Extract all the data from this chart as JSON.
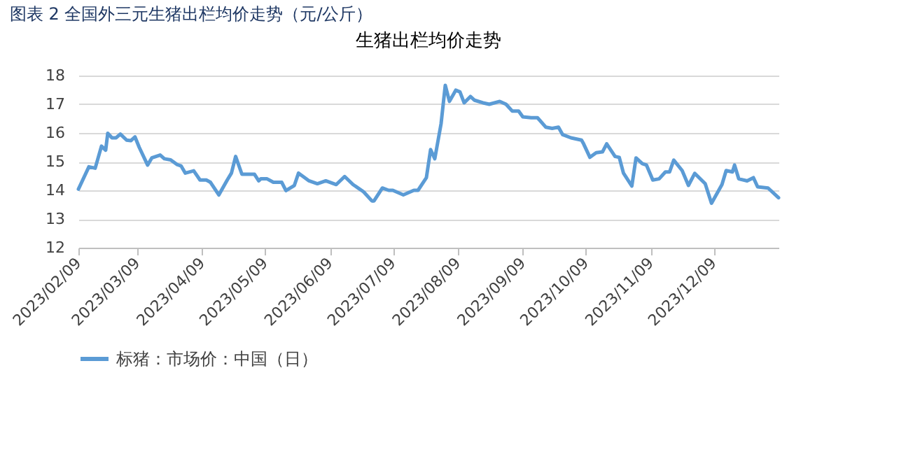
{
  "chart_data": {
    "type": "line",
    "title": "图表 2 全国外三元生猪出栏均价走势（元/公斤）",
    "subtitle": "生猪出栏均价走势",
    "x": [
      "2023-02-09",
      "2023-02-14",
      "2023-02-17",
      "2023-02-20",
      "2023-02-22",
      "2023-02-23",
      "2023-02-25",
      "2023-02-27",
      "2023-03-01",
      "2023-03-04",
      "2023-03-06",
      "2023-03-08",
      "2023-03-10",
      "2023-03-14",
      "2023-03-16",
      "2023-03-20",
      "2023-03-22",
      "2023-03-25",
      "2023-03-28",
      "2023-03-30",
      "2023-04-01",
      "2023-04-05",
      "2023-04-08",
      "2023-04-11",
      "2023-04-13",
      "2023-04-17",
      "2023-04-21",
      "2023-04-23",
      "2023-04-25",
      "2023-04-28",
      "2023-05-04",
      "2023-05-06",
      "2023-05-07",
      "2023-05-10",
      "2023-05-13",
      "2023-05-17",
      "2023-05-19",
      "2023-05-23",
      "2023-05-25",
      "2023-05-30",
      "2023-06-03",
      "2023-06-07",
      "2023-06-12",
      "2023-06-16",
      "2023-06-20",
      "2023-06-25",
      "2023-06-29",
      "2023-06-30",
      "2023-07-04",
      "2023-07-07",
      "2023-07-09",
      "2023-07-14",
      "2023-07-19",
      "2023-07-21",
      "2023-07-25",
      "2023-07-27",
      "2023-07-29",
      "2023-08-01",
      "2023-08-03",
      "2023-08-05",
      "2023-08-08",
      "2023-08-10",
      "2023-08-12",
      "2023-08-15",
      "2023-08-17",
      "2023-08-21",
      "2023-08-24",
      "2023-08-29",
      "2023-09-01",
      "2023-09-04",
      "2023-09-07",
      "2023-09-09",
      "2023-09-13",
      "2023-09-16",
      "2023-09-20",
      "2023-09-23",
      "2023-09-26",
      "2023-09-28",
      "2023-10-02",
      "2023-10-07",
      "2023-10-08",
      "2023-10-11",
      "2023-10-14",
      "2023-10-17",
      "2023-10-19",
      "2023-10-23",
      "2023-10-25",
      "2023-10-27",
      "2023-10-31",
      "2023-11-02",
      "2023-11-05",
      "2023-11-07",
      "2023-11-10",
      "2023-11-13",
      "2023-11-16",
      "2023-11-18",
      "2023-11-20",
      "2023-11-24",
      "2023-11-27",
      "2023-11-30",
      "2023-12-05",
      "2023-12-08",
      "2023-12-13",
      "2023-12-15",
      "2023-12-18",
      "2023-12-19",
      "2023-12-21",
      "2023-12-25",
      "2023-12-28",
      "2023-12-30",
      "2024-01-04",
      "2024-01-09"
    ],
    "series": [
      {
        "name": "标猪：市场价：中国（日）",
        "color": "#5b9bd5",
        "values": [
          14.04,
          14.82,
          14.77,
          15.54,
          15.4,
          15.99,
          15.83,
          15.83,
          15.96,
          15.75,
          15.73,
          15.86,
          15.5,
          14.88,
          15.13,
          15.23,
          15.1,
          15.06,
          14.9,
          14.85,
          14.6,
          14.68,
          14.36,
          14.36,
          14.28,
          13.84,
          14.36,
          14.6,
          15.18,
          14.56,
          14.56,
          14.33,
          14.4,
          14.4,
          14.28,
          14.28,
          13.99,
          14.17,
          14.6,
          14.33,
          14.23,
          14.33,
          14.2,
          14.48,
          14.2,
          13.95,
          13.63,
          13.63,
          14.08,
          14.0,
          14.0,
          13.84,
          14.0,
          14.0,
          14.44,
          15.42,
          15.1,
          16.32,
          17.66,
          17.1,
          17.49,
          17.43,
          17.05,
          17.27,
          17.14,
          17.05,
          17.0,
          17.1,
          17.0,
          16.76,
          16.76,
          16.56,
          16.53,
          16.53,
          16.2,
          16.16,
          16.2,
          15.94,
          15.83,
          15.75,
          15.62,
          15.15,
          15.31,
          15.34,
          15.62,
          15.18,
          15.15,
          14.6,
          14.15,
          15.13,
          14.93,
          14.88,
          14.36,
          14.4,
          14.64,
          14.64,
          15.05,
          14.69,
          14.17,
          14.59,
          14.23,
          13.55,
          14.2,
          14.69,
          14.64,
          14.88,
          14.4,
          14.33,
          14.44,
          14.12,
          14.08,
          13.74
        ]
      }
    ],
    "xlim": [
      "2023-02-09",
      "2024-01-09"
    ],
    "xticks": [
      {
        "value": "2023-02-09",
        "label": "2023/02/09"
      },
      {
        "value": "2023-03-09",
        "label": "2023/03/09"
      },
      {
        "value": "2023-04-09",
        "label": "2023/04/09"
      },
      {
        "value": "2023-05-09",
        "label": "2023/05/09"
      },
      {
        "value": "2023-06-09",
        "label": "2023/06/09"
      },
      {
        "value": "2023-07-09",
        "label": "2023/07/09"
      },
      {
        "value": "2023-08-09",
        "label": "2023/08/09"
      },
      {
        "value": "2023-09-09",
        "label": "2023/09/09"
      },
      {
        "value": "2023-10-09",
        "label": "2023/10/09"
      },
      {
        "value": "2023-11-09",
        "label": "2023/11/09"
      },
      {
        "value": "2023-12-09",
        "label": "2023/12/09"
      }
    ],
    "ylim": [
      12,
      18
    ],
    "yticks": [
      12,
      13,
      14,
      15,
      16,
      17,
      18
    ],
    "grid": "y",
    "legend": "bottom",
    "marker": "none",
    "line_style": "solid"
  }
}
